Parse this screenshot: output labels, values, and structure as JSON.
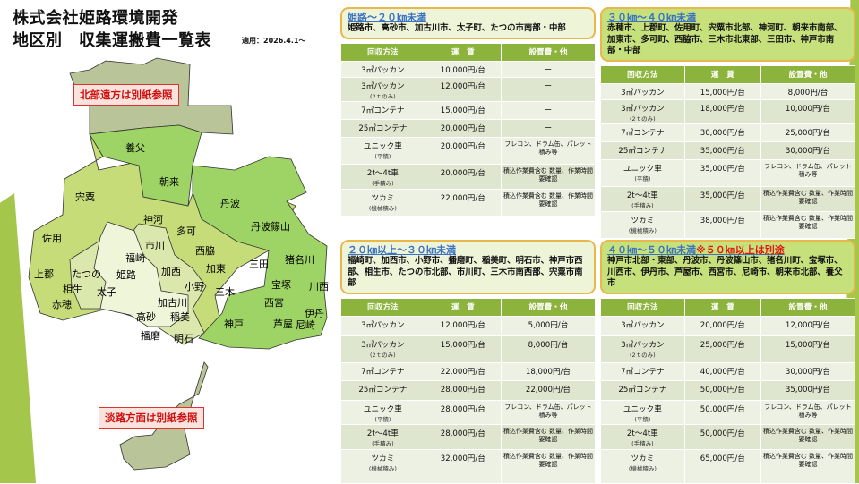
{
  "title": {
    "line1": "株式会社姫路環境開発",
    "line2": "地区別　収集運搬費一覧表",
    "applied": "適用：2026.4.1～"
  },
  "map": {
    "notes": {
      "north": "北部遠方は別紙参照",
      "awaji": "淡路方面は別紙参照"
    },
    "colors": {
      "other": "#b9c498",
      "zone40_50": "#9ed465",
      "zone30_40": "#c6dc78",
      "zone20_30": "#dbe8ad",
      "zone0_20": "#eef5d9"
    },
    "labels": [
      "養父",
      "朝来",
      "宍粟",
      "丹波",
      "神河",
      "丹波篠山",
      "多可",
      "佐用",
      "市川",
      "西脇",
      "福崎",
      "猪名川",
      "三田",
      "加東",
      "加西",
      "上郡",
      "たつの",
      "姫路",
      "相生",
      "太子",
      "小野",
      "三木",
      "宝塚",
      "川西",
      "西宮",
      "赤穂",
      "加古川",
      "高砂",
      "稲美",
      "伊丹",
      "芦屋",
      "尼崎",
      "神戸",
      "播磨",
      "明石"
    ]
  },
  "headers": [
    "回収方法",
    "運　賃",
    "設置費・他"
  ],
  "panels": [
    {
      "heading": "姫路～２０㎞未満",
      "heading_note": "",
      "areas": "姫路市、高砂市、加古川市、太子町、たつの市南部・中部",
      "rows": [
        [
          "3㎥パッカン",
          "",
          "10,000円/台",
          "ー"
        ],
        [
          "3㎥パッカン",
          "(2ｔのみ)",
          "12,000円/台",
          "ー"
        ],
        [
          "7㎥コンテナ",
          "",
          "15,000円/台",
          "ー"
        ],
        [
          "25㎥コンテナ",
          "",
          "20,000円/台",
          "ー"
        ],
        [
          "ユニック車",
          "(平積)",
          "20,000円/台",
          "フレコン、ドラム缶、パレット積み等"
        ],
        [
          "2t～4t車",
          "(手積み)",
          "20,000円/台",
          "積込作業費含む 数量、作業時間要確認"
        ],
        [
          "ツカミ",
          "(機械積み)",
          "22,000円/台",
          "積込作業費含む 数量、作業時間要確認"
        ]
      ]
    },
    {
      "heading": "３０㎞～４０㎞未満",
      "heading_note": "",
      "areas": "赤穂市、上郡町、佐用町、宍粟市北部、神河町、朝来市南部、加東市、多可町、西脇市、三木市北東部、三田市、神戸市南部・中部",
      "rows": [
        [
          "3㎥パッカン",
          "",
          "15,000円/台",
          "8,000円/台"
        ],
        [
          "3㎥パッカン",
          "(2ｔのみ)",
          "18,000円/台",
          "10,000円/台"
        ],
        [
          "7㎥コンテナ",
          "",
          "30,000円/台",
          "25,000円/台"
        ],
        [
          "25㎥コンテナ",
          "",
          "35,000円/台",
          "30,000円/台"
        ],
        [
          "ユニック車",
          "(平積)",
          "35,000円/台",
          "フレコン、ドラム缶、パレット積み等"
        ],
        [
          "2t～4t車",
          "(手積み)",
          "35,000円/台",
          "積込作業費含む 数量、作業時間要確認"
        ],
        [
          "ツカミ",
          "(機械積み)",
          "38,000円/台",
          "積込作業費含む 数量、作業時間要確認"
        ]
      ]
    },
    {
      "heading": "２０㎞以上～３０㎞未満",
      "heading_note": "",
      "areas": "福崎町、加西市、小野市、播磨町、稲美町、明石市、神戸市西部、相生市、たつの市北部、市川町、三木市南西部、宍粟市南部",
      "rows": [
        [
          "3㎥パッカン",
          "",
          "12,000円/台",
          "5,000円/台"
        ],
        [
          "3㎥パッカン",
          "(2ｔのみ)",
          "15,000円/台",
          "8,000円/台"
        ],
        [
          "7㎥コンテナ",
          "",
          "22,000円/台",
          "18,000円/台"
        ],
        [
          "25㎥コンテナ",
          "",
          "28,000円/台",
          "22,000円/台"
        ],
        [
          "ユニック車",
          "(平積)",
          "28,000円/台",
          "フレコン、ドラム缶、パレット積み等"
        ],
        [
          "2t～4t車",
          "(手積み)",
          "28,000円/台",
          "積込作業費含む 数量、作業時間要確認"
        ],
        [
          "ツカミ",
          "(機械積み)",
          "32,000円/台",
          "積込作業費含む 数量、作業時間要確認"
        ]
      ]
    },
    {
      "heading": "４０㎞～５０㎞未満",
      "heading_note": "※５０㎞以上は別途",
      "areas": "神戸市北部・東部、丹波市、丹波篠山市、猪名川町、宝塚市、川西市、伊丹市、芦屋市、西宮市、尼崎市、朝来市北部、養父市",
      "rows": [
        [
          "3㎥パッカン",
          "",
          "20,000円/台",
          "12,000円/台"
        ],
        [
          "3㎥パッカン",
          "(2ｔのみ)",
          "25,000円/台",
          "15,000円/台"
        ],
        [
          "7㎥コンテナ",
          "",
          "40,000円/台",
          "30,000円/台"
        ],
        [
          "25㎥コンテナ",
          "",
          "50,000円/台",
          "35,000円/台"
        ],
        [
          "ユニック車",
          "(平積)",
          "50,000円/台",
          "フレコン、ドラム缶、パレット積み等"
        ],
        [
          "2t～4t車",
          "(手積み)",
          "50,000円/台",
          "積込作業費含む 数量、作業時間要確認"
        ],
        [
          "ツカミ",
          "(機械積み)",
          "65,000円/台",
          "積込作業費含む 数量、作業時間要確認"
        ]
      ]
    }
  ]
}
